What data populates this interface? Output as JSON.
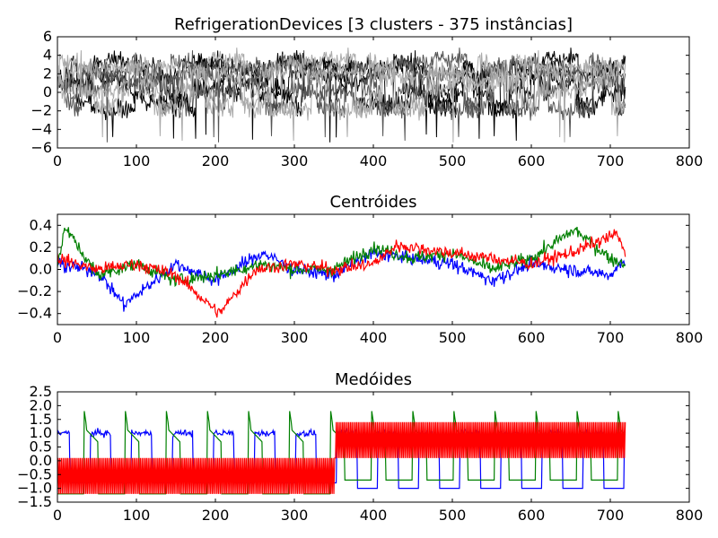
{
  "chart_data": [
    {
      "type": "line",
      "title": "RefrigerationDevices [3 clusters - 375 instâncias]",
      "xlabel": "",
      "ylabel": "",
      "xlim": [
        0,
        800
      ],
      "ylim": [
        -6,
        6
      ],
      "xticks": [
        0,
        100,
        200,
        300,
        400,
        500,
        600,
        700,
        800
      ],
      "yticks": [
        -6,
        -4,
        -2,
        0,
        2,
        4,
        6
      ],
      "grid": false,
      "n_points": 720,
      "series_colors": [
        "#000000",
        "#555555",
        "#aaaaaa"
      ],
      "description_of_data": "375 overlaid time series drawn as a dense band between about -2 and 4, with excursions down to -5.5 and up to 6",
      "band_min": -2,
      "band_max": 4
    },
    {
      "type": "line",
      "title": "Centróides",
      "xlabel": "",
      "ylabel": "",
      "xlim": [
        0,
        800
      ],
      "ylim": [
        -0.5,
        0.5
      ],
      "xticks": [
        0,
        100,
        200,
        300,
        400,
        500,
        600,
        700,
        800
      ],
      "yticks": [
        -0.4,
        -0.2,
        0.0,
        0.2,
        0.4
      ],
      "grid": false,
      "n_points": 720,
      "series": [
        {
          "color": "#0000ff",
          "values_sample": [
            [
              0,
              0.05
            ],
            [
              50,
              -0.02
            ],
            [
              85,
              -0.32
            ],
            [
              150,
              0.05
            ],
            [
              200,
              -0.1
            ],
            [
              260,
              0.15
            ],
            [
              300,
              0.0
            ],
            [
              350,
              -0.05
            ],
            [
              400,
              0.15
            ],
            [
              450,
              0.1
            ],
            [
              500,
              0.05
            ],
            [
              550,
              -0.1
            ],
            [
              600,
              0.05
            ],
            [
              650,
              0.0
            ],
            [
              700,
              -0.05
            ],
            [
              720,
              0.1
            ]
          ]
        },
        {
          "color": "#008000",
          "values_sample": [
            [
              0,
              0.05
            ],
            [
              10,
              0.38
            ],
            [
              50,
              -0.05
            ],
            [
              100,
              0.05
            ],
            [
              150,
              -0.1
            ],
            [
              200,
              -0.05
            ],
            [
              260,
              0.05
            ],
            [
              300,
              0.0
            ],
            [
              350,
              0.0
            ],
            [
              400,
              0.2
            ],
            [
              450,
              0.1
            ],
            [
              500,
              0.15
            ],
            [
              550,
              0.0
            ],
            [
              600,
              0.1
            ],
            [
              655,
              0.36
            ],
            [
              700,
              0.1
            ],
            [
              720,
              0.05
            ]
          ]
        },
        {
          "color": "#ff0000",
          "values_sample": [
            [
              0,
              0.1
            ],
            [
              50,
              0.0
            ],
            [
              100,
              0.05
            ],
            [
              150,
              -0.05
            ],
            [
              205,
              -0.4
            ],
            [
              250,
              0.0
            ],
            [
              300,
              0.05
            ],
            [
              350,
              0.0
            ],
            [
              400,
              0.05
            ],
            [
              430,
              0.22
            ],
            [
              500,
              0.15
            ],
            [
              550,
              0.1
            ],
            [
              600,
              0.05
            ],
            [
              650,
              0.15
            ],
            [
              708,
              0.32
            ],
            [
              720,
              0.15
            ]
          ]
        }
      ]
    },
    {
      "type": "line",
      "title": "Medóides",
      "xlabel": "",
      "ylabel": "",
      "xlim": [
        0,
        800
      ],
      "ylim": [
        -1.5,
        2.5
      ],
      "xticks": [
        0,
        100,
        200,
        300,
        400,
        500,
        600,
        700,
        800
      ],
      "yticks": [
        -1.5,
        -1.0,
        -0.5,
        0.0,
        0.5,
        1.0,
        1.5,
        2.0,
        2.5
      ],
      "grid": false,
      "n_points": 720,
      "series": [
        {
          "color": "#0000ff",
          "pattern": "periodic square wave",
          "high": 1.0,
          "low": -0.8,
          "later_low": -1.0
        },
        {
          "color": "#008000",
          "pattern": "periodic spikes",
          "peak": 1.8,
          "base": -1.2,
          "later_base": -0.7
        },
        {
          "color": "#ff0000",
          "pattern": "rapid oscillation",
          "low_segment": [
            -1.2,
            0.1
          ],
          "high_segment": [
            0.1,
            1.4
          ],
          "switch_x": 352
        }
      ]
    }
  ]
}
